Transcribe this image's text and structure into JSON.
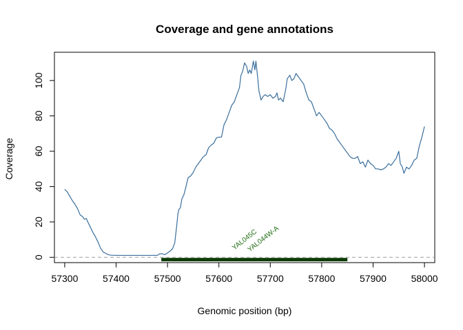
{
  "chart_data": {
    "type": "line",
    "title": "Coverage and gene annotations",
    "xlabel": "Genomic position (bp)",
    "ylabel": "Coverage",
    "xlim": [
      57280,
      58020
    ],
    "ylim": [
      -3,
      116
    ],
    "x_ticks": [
      57300,
      57400,
      57500,
      57600,
      57700,
      57800,
      57900,
      58000
    ],
    "x_tick_labels": [
      "57300",
      "57400",
      "57500",
      "57600",
      "57700",
      "57800",
      "57900",
      "58000"
    ],
    "y_ticks": [
      0,
      20,
      40,
      60,
      80,
      100
    ],
    "y_tick_labels": [
      "0",
      "20",
      "40",
      "60",
      "80",
      "100"
    ],
    "grid": false,
    "baseline": {
      "y": 0,
      "style": "dashed",
      "color": "#9e9e9e"
    },
    "series": [
      {
        "color": "#3a6e9c",
        "points": [
          [
            57300,
            38.5
          ],
          [
            57305,
            37
          ],
          [
            57310,
            34.5
          ],
          [
            57315,
            32
          ],
          [
            57320,
            30
          ],
          [
            57325,
            27.5
          ],
          [
            57330,
            24
          ],
          [
            57335,
            23
          ],
          [
            57338,
            21.5
          ],
          [
            57342,
            22
          ],
          [
            57345,
            20
          ],
          [
            57350,
            17
          ],
          [
            57355,
            14
          ],
          [
            57360,
            11.5
          ],
          [
            57365,
            8.5
          ],
          [
            57370,
            5
          ],
          [
            57375,
            3
          ],
          [
            57380,
            2.2
          ],
          [
            57385,
            1.5
          ],
          [
            57390,
            1.2
          ],
          [
            57400,
            1.1
          ],
          [
            57420,
            1.1
          ],
          [
            57440,
            1.1
          ],
          [
            57460,
            1.1
          ],
          [
            57480,
            1.1
          ],
          [
            57485,
            2
          ],
          [
            57490,
            2
          ],
          [
            57495,
            1.5
          ],
          [
            57500,
            2.5
          ],
          [
            57505,
            3.5
          ],
          [
            57510,
            5
          ],
          [
            57514,
            8
          ],
          [
            57516,
            13
          ],
          [
            57518,
            18
          ],
          [
            57520,
            24
          ],
          [
            57522,
            27
          ],
          [
            57525,
            28
          ],
          [
            57528,
            33
          ],
          [
            57532,
            35.5
          ],
          [
            57536,
            40
          ],
          [
            57540,
            45
          ],
          [
            57545,
            46
          ],
          [
            57550,
            48
          ],
          [
            57555,
            51
          ],
          [
            57560,
            53
          ],
          [
            57565,
            55
          ],
          [
            57570,
            57
          ],
          [
            57575,
            58
          ],
          [
            57580,
            62
          ],
          [
            57585,
            63.5
          ],
          [
            57590,
            64.5
          ],
          [
            57595,
            67.5
          ],
          [
            57600,
            68
          ],
          [
            57605,
            68
          ],
          [
            57610,
            75
          ],
          [
            57615,
            78
          ],
          [
            57620,
            82
          ],
          [
            57625,
            86
          ],
          [
            57630,
            88
          ],
          [
            57635,
            92
          ],
          [
            57640,
            96
          ],
          [
            57643,
            103
          ],
          [
            57646,
            105
          ],
          [
            57650,
            110
          ],
          [
            57654,
            108
          ],
          [
            57657,
            104
          ],
          [
            57660,
            106
          ],
          [
            57663,
            104
          ],
          [
            57667,
            111
          ],
          [
            57670,
            106
          ],
          [
            57672,
            111
          ],
          [
            57675,
            103
          ],
          [
            57678,
            94
          ],
          [
            57682,
            89
          ],
          [
            57686,
            91
          ],
          [
            57690,
            92
          ],
          [
            57695,
            91
          ],
          [
            57700,
            92
          ],
          [
            57705,
            90
          ],
          [
            57710,
            91
          ],
          [
            57713,
            93
          ],
          [
            57716,
            89
          ],
          [
            57720,
            90
          ],
          [
            57725,
            88
          ],
          [
            57730,
            95
          ],
          [
            57733,
            101
          ],
          [
            57738,
            103
          ],
          [
            57742,
            100
          ],
          [
            57746,
            101
          ],
          [
            57750,
            104
          ],
          [
            57755,
            102
          ],
          [
            57760,
            100
          ],
          [
            57765,
            98
          ],
          [
            57770,
            93
          ],
          [
            57775,
            89
          ],
          [
            57780,
            88
          ],
          [
            57785,
            84
          ],
          [
            57790,
            80
          ],
          [
            57795,
            82
          ],
          [
            57800,
            80
          ],
          [
            57805,
            78
          ],
          [
            57810,
            76
          ],
          [
            57815,
            73
          ],
          [
            57820,
            72
          ],
          [
            57825,
            70
          ],
          [
            57830,
            67
          ],
          [
            57835,
            65
          ],
          [
            57840,
            63
          ],
          [
            57845,
            61
          ],
          [
            57850,
            59
          ],
          [
            57855,
            57
          ],
          [
            57860,
            56
          ],
          [
            57865,
            56
          ],
          [
            57870,
            57
          ],
          [
            57875,
            53
          ],
          [
            57880,
            54
          ],
          [
            57885,
            51
          ],
          [
            57890,
            55
          ],
          [
            57895,
            53
          ],
          [
            57900,
            52
          ],
          [
            57905,
            50
          ],
          [
            57910,
            50
          ],
          [
            57915,
            49.5
          ],
          [
            57920,
            50
          ],
          [
            57925,
            51
          ],
          [
            57930,
            53
          ],
          [
            57935,
            52
          ],
          [
            57940,
            54
          ],
          [
            57945,
            56
          ],
          [
            57950,
            60
          ],
          [
            57953,
            53
          ],
          [
            57957,
            51
          ],
          [
            57960,
            47.5
          ],
          [
            57965,
            51
          ],
          [
            57970,
            50
          ],
          [
            57975,
            52
          ],
          [
            57980,
            55
          ],
          [
            57985,
            56
          ],
          [
            57990,
            63
          ],
          [
            57995,
            68
          ],
          [
            58000,
            74
          ]
        ]
      }
    ],
    "genes": [
      {
        "name": "YAL045C",
        "start": 57488,
        "end": 57850,
        "color": "#1f6d12"
      },
      {
        "name": "YAL044W-A",
        "start": 57488,
        "end": 57850,
        "color": "#1f6d12"
      }
    ],
    "gene_bar_color": "#0d3b07"
  }
}
